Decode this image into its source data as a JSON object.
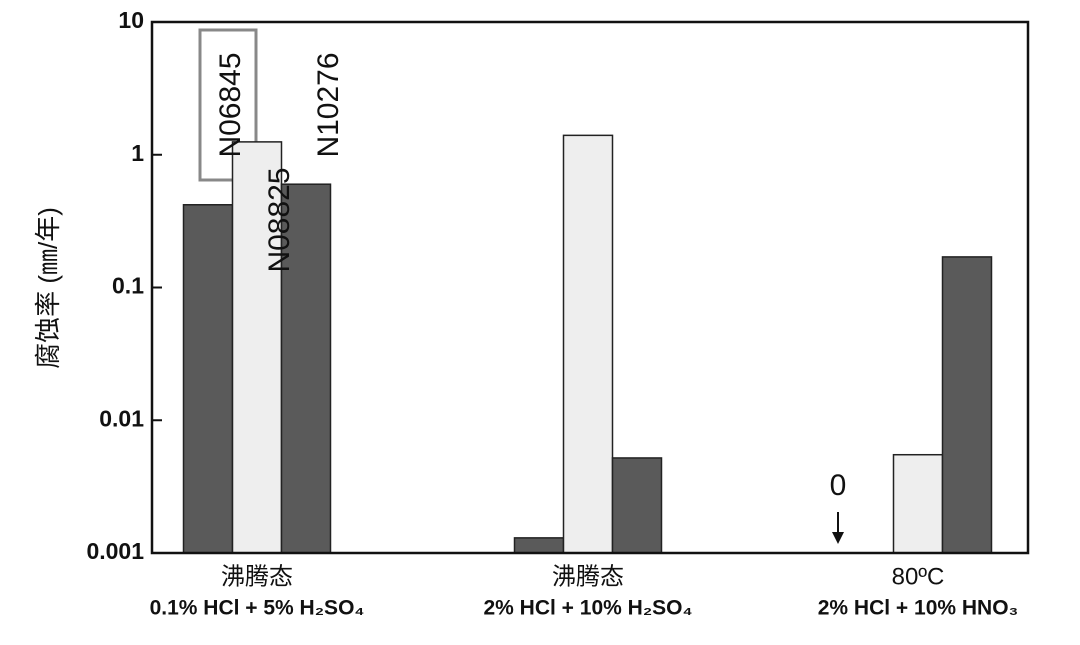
{
  "chart_data": {
    "type": "bar",
    "y_label": "腐蚀率 (㎜/年)",
    "categories": [
      "沸腾态",
      "沸腾态",
      "80ºC"
    ],
    "category_sublabels": [
      "0.1% HCl + 5% H₂SO₄",
      "2% HCl + 10% H₂SO₄",
      "2% HCl + 10% HNO₃"
    ],
    "series": [
      {
        "name": "N06845",
        "color": "#5a5a5a",
        "values": [
          0.42,
          0.0013,
          0
        ]
      },
      {
        "name": "N08825",
        "color": "#eeeeee",
        "values": [
          1.25,
          1.4,
          0.0055
        ]
      },
      {
        "name": "N10276",
        "color": "#5a5a5a",
        "values": [
          0.6,
          0.0052,
          0.17
        ]
      }
    ],
    "log_scale": true,
    "ylim": [
      0.001,
      10
    ],
    "yticks": [
      0.001,
      0.01,
      0.1,
      1,
      10
    ]
  }
}
